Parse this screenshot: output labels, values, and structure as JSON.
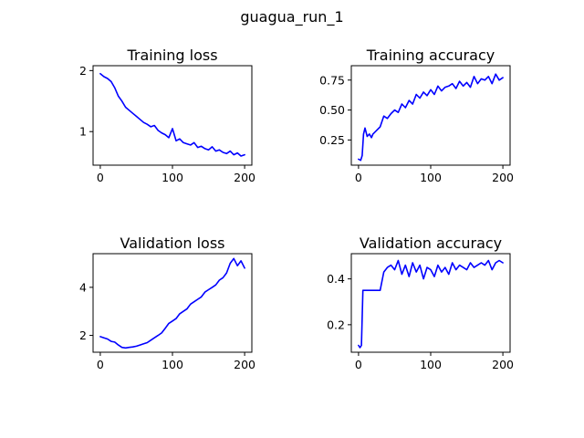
{
  "figure": {
    "title": "guagua_run_1",
    "line_color": "#0000ff"
  },
  "chart_data": [
    {
      "type": "line",
      "title": "Training loss",
      "xlabel": "",
      "ylabel": "",
      "xlim": [
        -10,
        210
      ],
      "ylim": [
        0.45,
        2.08
      ],
      "xticks": [
        0,
        100,
        200
      ],
      "yticks": [
        1,
        2
      ],
      "ytick_labels": [
        "1",
        "2"
      ],
      "grid": false,
      "series": [
        {
          "color": "#0000ff",
          "x": [
            0,
            5,
            10,
            15,
            20,
            25,
            30,
            35,
            40,
            45,
            50,
            55,
            60,
            65,
            70,
            75,
            80,
            85,
            90,
            95,
            100,
            105,
            110,
            115,
            120,
            125,
            130,
            135,
            140,
            145,
            150,
            155,
            160,
            165,
            170,
            175,
            180,
            185,
            190,
            195,
            200
          ],
          "y": [
            1.95,
            1.9,
            1.87,
            1.82,
            1.72,
            1.58,
            1.5,
            1.4,
            1.35,
            1.3,
            1.25,
            1.2,
            1.15,
            1.12,
            1.08,
            1.1,
            1.02,
            0.98,
            0.95,
            0.9,
            1.05,
            0.85,
            0.88,
            0.82,
            0.8,
            0.78,
            0.82,
            0.74,
            0.76,
            0.72,
            0.7,
            0.75,
            0.68,
            0.7,
            0.66,
            0.64,
            0.68,
            0.62,
            0.65,
            0.6,
            0.62
          ]
        }
      ]
    },
    {
      "type": "line",
      "title": "Training accuracy",
      "xlabel": "",
      "ylabel": "",
      "xlim": [
        -10,
        210
      ],
      "ylim": [
        0.04,
        0.87
      ],
      "xticks": [
        0,
        100,
        200
      ],
      "yticks": [
        0.25,
        0.5,
        0.75
      ],
      "ytick_labels": [
        "0.25",
        "0.50",
        "0.75"
      ],
      "grid": false,
      "series": [
        {
          "color": "#0000ff",
          "x": [
            0,
            3,
            5,
            7,
            9,
            12,
            15,
            18,
            20,
            25,
            30,
            35,
            40,
            45,
            50,
            55,
            60,
            65,
            70,
            75,
            80,
            85,
            90,
            95,
            100,
            105,
            110,
            115,
            120,
            125,
            130,
            135,
            140,
            145,
            150,
            155,
            160,
            165,
            170,
            175,
            180,
            185,
            190,
            195,
            200
          ],
          "y": [
            0.09,
            0.08,
            0.12,
            0.3,
            0.35,
            0.28,
            0.3,
            0.27,
            0.3,
            0.33,
            0.36,
            0.45,
            0.43,
            0.47,
            0.5,
            0.48,
            0.55,
            0.52,
            0.58,
            0.55,
            0.63,
            0.6,
            0.65,
            0.62,
            0.67,
            0.63,
            0.7,
            0.66,
            0.69,
            0.7,
            0.72,
            0.68,
            0.74,
            0.7,
            0.73,
            0.69,
            0.78,
            0.72,
            0.76,
            0.75,
            0.78,
            0.72,
            0.8,
            0.75,
            0.77
          ]
        }
      ]
    },
    {
      "type": "line",
      "title": "Validation loss",
      "xlabel": "",
      "ylabel": "",
      "xlim": [
        -10,
        210
      ],
      "ylim": [
        1.3,
        5.4
      ],
      "xticks": [
        0,
        100,
        200
      ],
      "yticks": [
        2,
        4
      ],
      "ytick_labels": [
        "2",
        "4"
      ],
      "grid": false,
      "series": [
        {
          "color": "#0000ff",
          "x": [
            0,
            5,
            10,
            15,
            20,
            25,
            30,
            35,
            40,
            45,
            50,
            55,
            60,
            65,
            70,
            75,
            80,
            85,
            90,
            95,
            100,
            105,
            110,
            115,
            120,
            125,
            130,
            135,
            140,
            145,
            150,
            155,
            160,
            165,
            170,
            175,
            180,
            185,
            190,
            195,
            200
          ],
          "y": [
            1.95,
            1.9,
            1.85,
            1.75,
            1.72,
            1.6,
            1.5,
            1.48,
            1.5,
            1.52,
            1.55,
            1.6,
            1.65,
            1.7,
            1.8,
            1.9,
            2.0,
            2.1,
            2.3,
            2.5,
            2.6,
            2.7,
            2.9,
            3.0,
            3.1,
            3.3,
            3.4,
            3.5,
            3.6,
            3.8,
            3.9,
            4.0,
            4.1,
            4.3,
            4.4,
            4.6,
            5.0,
            5.2,
            4.9,
            5.1,
            4.8
          ]
        }
      ]
    },
    {
      "type": "line",
      "title": "Validation accuracy",
      "xlabel": "",
      "ylabel": "",
      "xlim": [
        -10,
        210
      ],
      "ylim": [
        0.08,
        0.51
      ],
      "xticks": [
        0,
        100,
        200
      ],
      "yticks": [
        0.2,
        0.4
      ],
      "ytick_labels": [
        "0.2",
        "0.4"
      ],
      "grid": false,
      "series": [
        {
          "color": "#0000ff",
          "x": [
            0,
            2,
            4,
            6,
            8,
            10,
            15,
            20,
            25,
            30,
            35,
            40,
            45,
            50,
            55,
            60,
            65,
            70,
            75,
            80,
            85,
            90,
            95,
            100,
            105,
            110,
            115,
            120,
            125,
            130,
            135,
            140,
            145,
            150,
            155,
            160,
            165,
            170,
            175,
            180,
            185,
            190,
            195,
            200
          ],
          "y": [
            0.11,
            0.1,
            0.11,
            0.35,
            0.35,
            0.35,
            0.35,
            0.35,
            0.35,
            0.35,
            0.43,
            0.45,
            0.46,
            0.44,
            0.48,
            0.42,
            0.46,
            0.41,
            0.47,
            0.43,
            0.46,
            0.4,
            0.45,
            0.44,
            0.41,
            0.46,
            0.43,
            0.45,
            0.42,
            0.47,
            0.44,
            0.46,
            0.45,
            0.44,
            0.47,
            0.45,
            0.46,
            0.47,
            0.46,
            0.48,
            0.44,
            0.47,
            0.48,
            0.47
          ]
        }
      ]
    }
  ]
}
